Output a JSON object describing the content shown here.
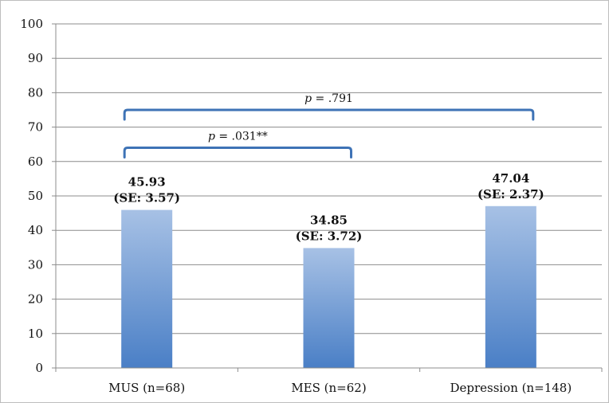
{
  "chart_data": {
    "type": "bar",
    "title": "",
    "xlabel": "",
    "ylabel": "",
    "ylim": [
      0,
      100
    ],
    "yticks": [
      "0",
      "10",
      "20",
      "30",
      "40",
      "50",
      "60",
      "70",
      "80",
      "90",
      "100"
    ],
    "grid": true,
    "legend": "none",
    "categories": [
      "MUS (n=68)",
      "MES (n=62)",
      "Depression (n=148)"
    ],
    "values": [
      45.93,
      34.85,
      47.04
    ],
    "data_labels": [
      {
        "value": "45.93",
        "se": "(SE: 3.57)"
      },
      {
        "value": "34.85",
        "se": "(SE: 3.72)"
      },
      {
        "value": "47.04",
        "se": "(SE: 2.37)"
      }
    ],
    "annotations": [
      {
        "p_label": "p",
        "p_text": " = .031**",
        "from": 0,
        "to": 1,
        "y": 64
      },
      {
        "p_label": "p",
        "p_text": " = .791",
        "from": 0,
        "to": 2,
        "y": 75
      }
    ],
    "colors": {
      "bar_top": "#a7c1e5",
      "bar_bottom": "#4a7fc6",
      "bracket": "#3e73b6"
    }
  }
}
